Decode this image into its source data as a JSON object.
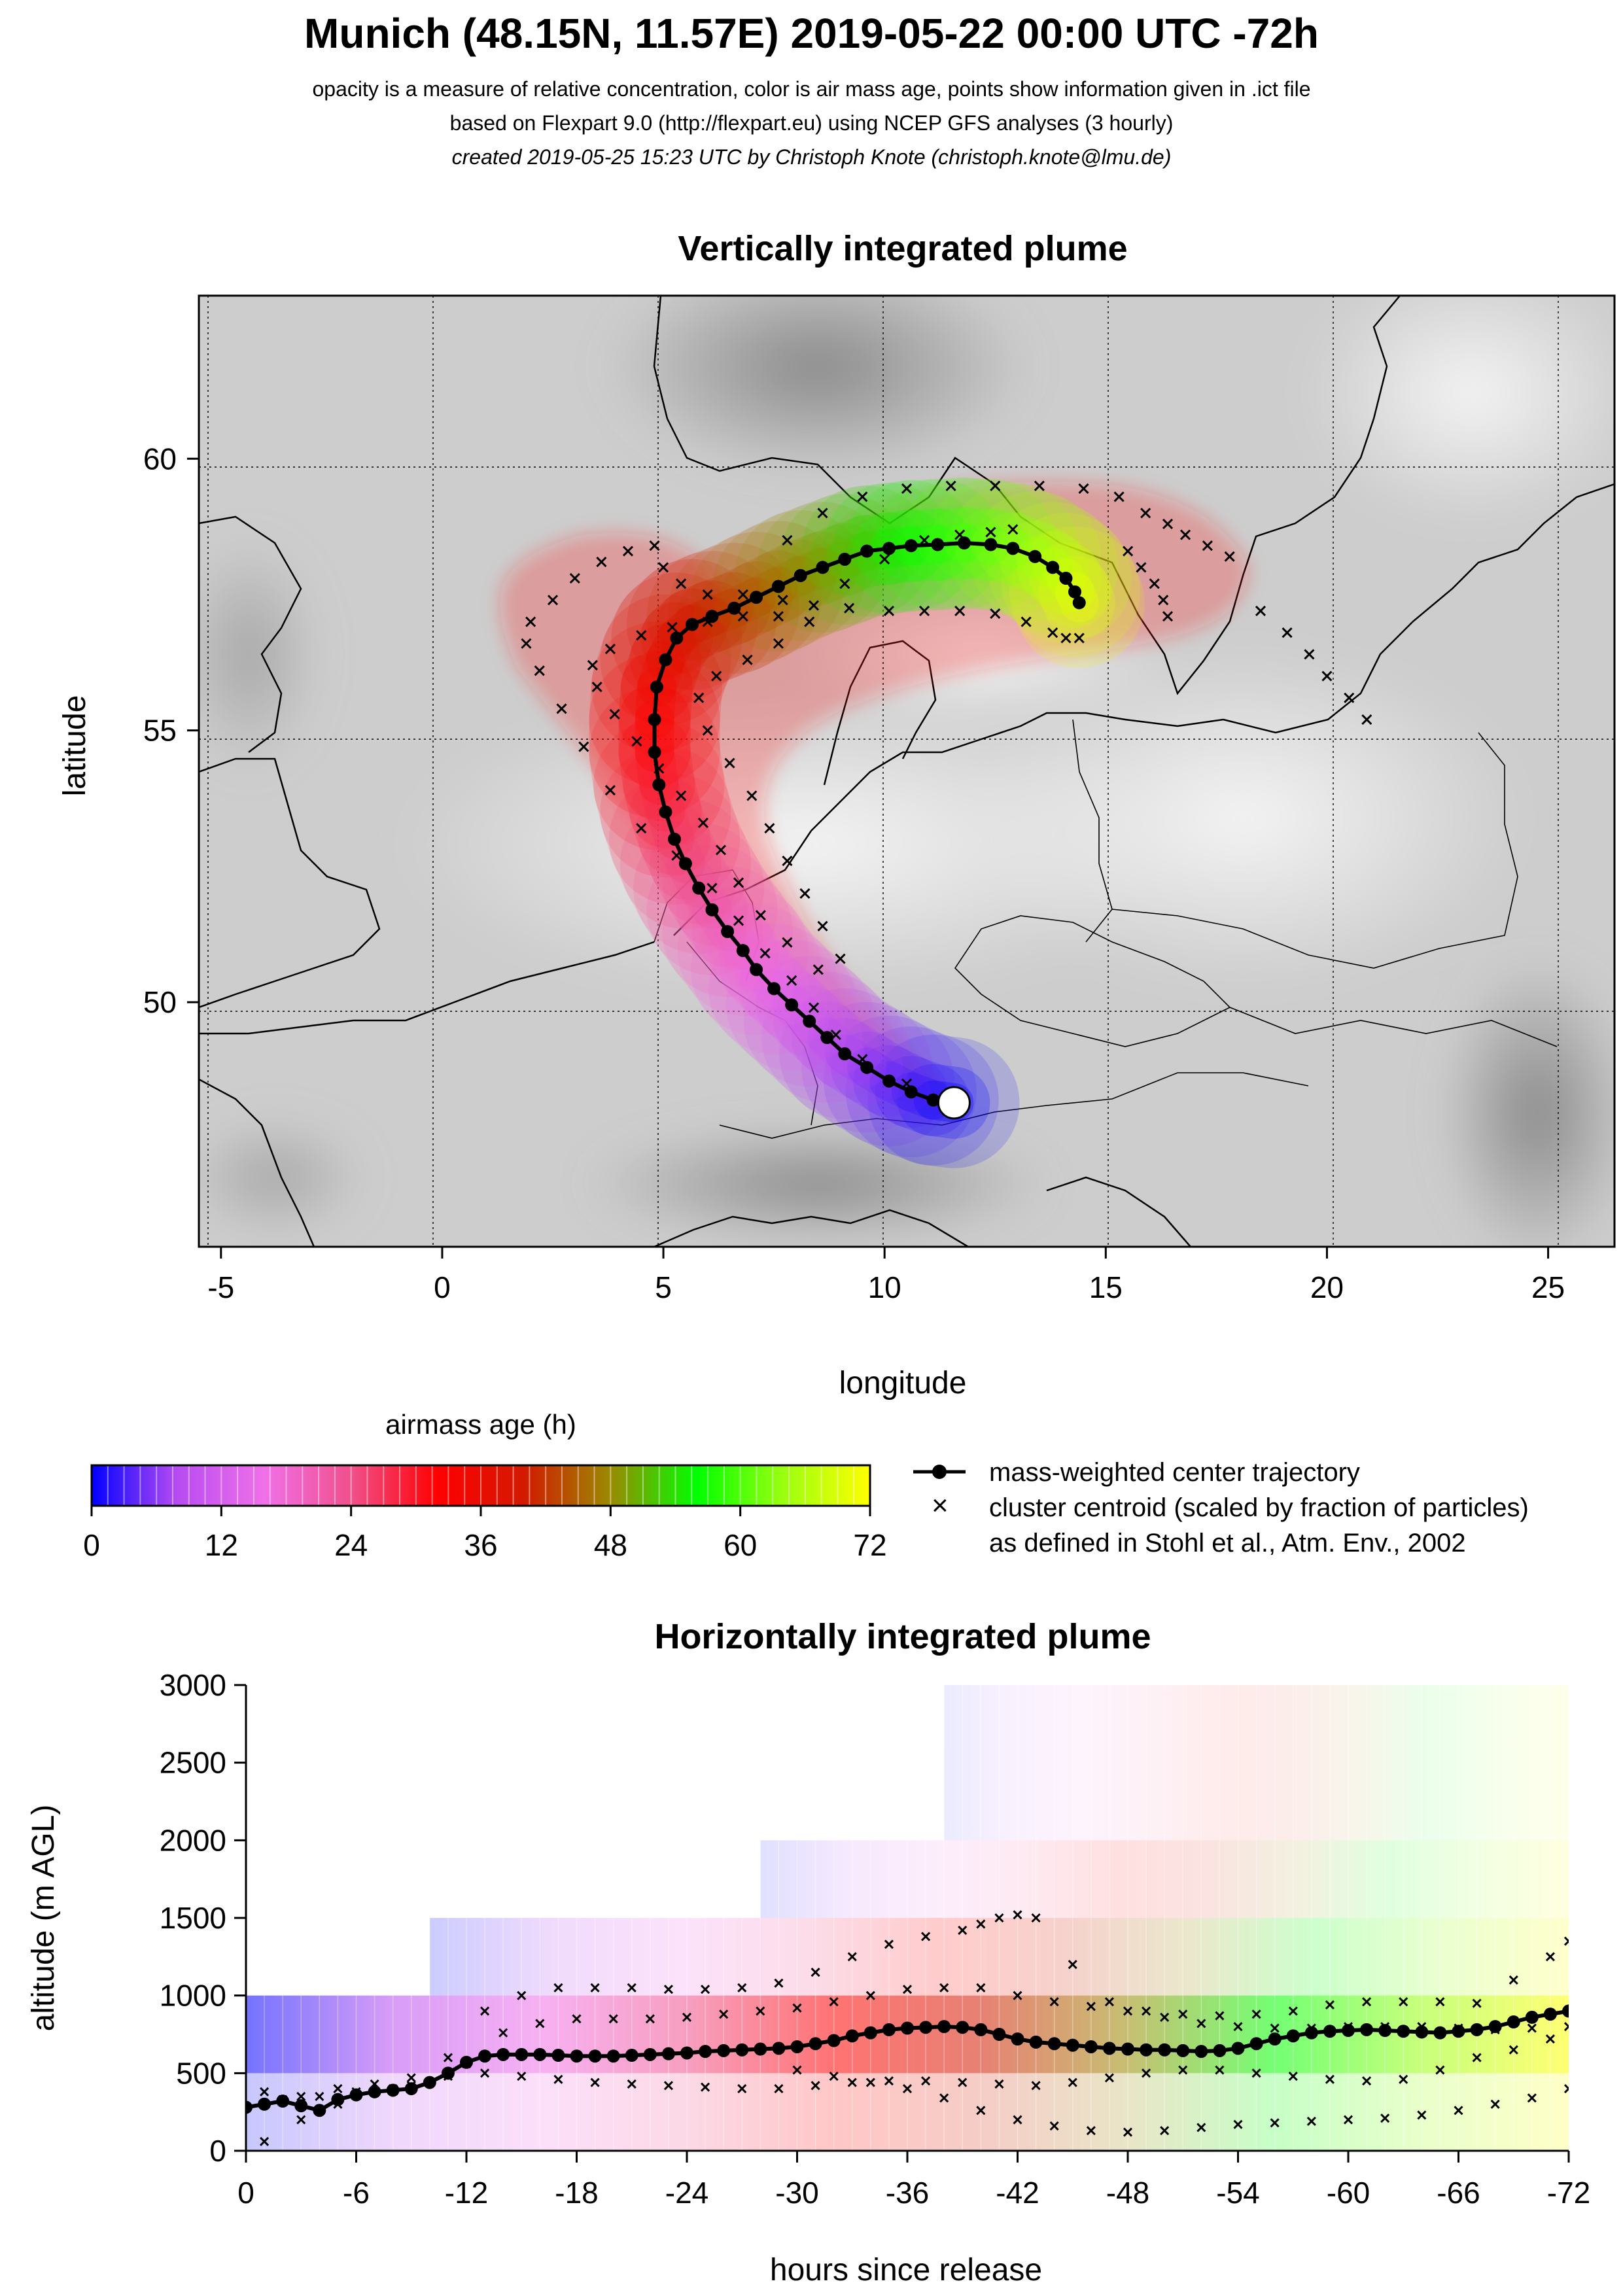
{
  "header": {
    "title": "Munich (48.15N, 11.57E) 2019-05-22 00:00 UTC -72h",
    "line1": "opacity is a measure of relative concentration, color is air mass age, points show information given in .ict file",
    "line2": "based on Flexpart 9.0 (http://flexpart.eu) using NCEP GFS analyses (3 hourly)",
    "line3": "created 2019-05-25 15:23 UTC by Christoph Knote (christoph.knote@lmu.de)"
  },
  "colors": {
    "age_stops": [
      "#0000ff",
      "#b84cf2",
      "#f070e8",
      "#f0508c",
      "#ff0000",
      "#d21a00",
      "#9a8a00",
      "#00ff00",
      "#9bff10",
      "#ffff00"
    ],
    "map_background": "#c8c8c8",
    "land_light": "#dedede"
  },
  "legend": {
    "colorbar_title": "airmass age (h)",
    "colorbar_ticks": [
      "0",
      "12",
      "24",
      "36",
      "48",
      "60",
      "72"
    ],
    "center_label": "mass-weighted center trajectory",
    "cluster_label1": "cluster centroid (scaled by fraction of particles)",
    "cluster_label2": "as defined in Stohl et al., Atm. Env., 2002"
  },
  "chart_data": [
    {
      "type": "scatter",
      "title": "Vertically integrated plume",
      "xlabel": "longitude",
      "ylabel": "latitude",
      "xlim": [
        -5.5,
        26.5
      ],
      "ylim": [
        45.5,
        63
      ],
      "xticks": [
        -5,
        0,
        5,
        10,
        15,
        20,
        25
      ],
      "yticks": [
        50,
        55,
        60
      ],
      "grid": true,
      "release_point": {
        "lon": 11.57,
        "lat": 48.15
      },
      "series": [
        {
          "name": "mass-weighted center trajectory",
          "points": [
            [
              11.57,
              48.15
            ],
            [
              11.1,
              48.2
            ],
            [
              10.6,
              48.35
            ],
            [
              10.1,
              48.55
            ],
            [
              9.6,
              48.8
            ],
            [
              9.1,
              49.05
            ],
            [
              8.7,
              49.35
            ],
            [
              8.3,
              49.65
            ],
            [
              7.9,
              49.95
            ],
            [
              7.5,
              50.25
            ],
            [
              7.1,
              50.6
            ],
            [
              6.8,
              50.95
            ],
            [
              6.45,
              51.3
            ],
            [
              6.1,
              51.7
            ],
            [
              5.8,
              52.1
            ],
            [
              5.5,
              52.55
            ],
            [
              5.25,
              53
            ],
            [
              5.05,
              53.5
            ],
            [
              4.9,
              54
            ],
            [
              4.8,
              54.6
            ],
            [
              4.8,
              55.2
            ],
            [
              4.85,
              55.8
            ],
            [
              5.05,
              56.3
            ],
            [
              5.3,
              56.7
            ],
            [
              5.65,
              56.95
            ],
            [
              6.1,
              57.1
            ],
            [
              6.6,
              57.25
            ],
            [
              7.1,
              57.45
            ],
            [
              7.6,
              57.65
            ],
            [
              8.1,
              57.85
            ],
            [
              8.6,
              58.0
            ],
            [
              9.1,
              58.15
            ],
            [
              9.6,
              58.3
            ],
            [
              10.1,
              58.35
            ],
            [
              10.6,
              58.4
            ],
            [
              11.2,
              58.42
            ],
            [
              11.8,
              58.45
            ],
            [
              12.4,
              58.42
            ],
            [
              12.9,
              58.35
            ],
            [
              13.4,
              58.2
            ],
            [
              13.8,
              58.0
            ],
            [
              14.1,
              57.8
            ],
            [
              14.3,
              57.55
            ],
            [
              14.4,
              57.35
            ]
          ]
        },
        {
          "name": "cluster centroid",
          "points": [
            [
              11.5,
              48.2
            ],
            [
              10.5,
              48.5
            ],
            [
              9.5,
              48.95
            ],
            [
              8.9,
              49.4
            ],
            [
              8.4,
              49.9
            ],
            [
              7.9,
              50.4
            ],
            [
              7.3,
              50.9
            ],
            [
              6.7,
              51.5
            ],
            [
              6.1,
              52.1
            ],
            [
              5.3,
              52.7
            ],
            [
              4.5,
              53.2
            ],
            [
              3.8,
              53.9
            ],
            [
              3.2,
              54.7
            ],
            [
              2.7,
              55.4
            ],
            [
              2.2,
              56.1
            ],
            [
              1.9,
              56.6
            ],
            [
              2.0,
              57.0
            ],
            [
              2.5,
              57.4
            ],
            [
              3.0,
              57.8
            ],
            [
              3.6,
              58.1
            ],
            [
              4.2,
              58.3
            ],
            [
              4.8,
              58.4
            ],
            [
              5.0,
              58.0
            ],
            [
              5.4,
              57.7
            ],
            [
              6.0,
              57.5
            ],
            [
              6.8,
              57.5
            ],
            [
              7.7,
              57.4
            ],
            [
              8.4,
              57.3
            ],
            [
              9.2,
              57.25
            ],
            [
              10.1,
              57.2
            ],
            [
              10.9,
              57.2
            ],
            [
              11.7,
              57.2
            ],
            [
              12.5,
              57.15
            ],
            [
              13.2,
              57.0
            ],
            [
              13.8,
              56.8
            ],
            [
              14.1,
              56.7
            ],
            [
              14.4,
              56.7
            ],
            [
              8.5,
              50.6
            ],
            [
              7.8,
              51.1
            ],
            [
              7.2,
              51.6
            ],
            [
              6.7,
              52.2
            ],
            [
              6.3,
              52.8
            ],
            [
              5.9,
              53.3
            ],
            [
              5.4,
              53.8
            ],
            [
              4.9,
              54.3
            ],
            [
              4.4,
              54.8
            ],
            [
              3.9,
              55.3
            ],
            [
              3.5,
              55.8
            ],
            [
              3.4,
              56.2
            ],
            [
              3.8,
              56.5
            ],
            [
              4.5,
              56.75
            ],
            [
              5.2,
              56.9
            ],
            [
              6.0,
              57.0
            ],
            [
              6.8,
              57.1
            ],
            [
              7.6,
              57.1
            ],
            [
              9.0,
              50.8
            ],
            [
              8.6,
              51.4
            ],
            [
              8.2,
              52.0
            ],
            [
              7.8,
              52.6
            ],
            [
              7.4,
              53.2
            ],
            [
              7.0,
              53.8
            ],
            [
              6.5,
              54.4
            ],
            [
              6.0,
              55.0
            ],
            [
              5.8,
              55.6
            ],
            [
              6.2,
              56.0
            ],
            [
              6.9,
              56.3
            ],
            [
              7.6,
              56.6
            ],
            [
              8.3,
              57.0
            ],
            [
              9.1,
              57.7
            ],
            [
              10.0,
              58.15
            ],
            [
              10.9,
              58.5
            ],
            [
              11.7,
              58.6
            ],
            [
              12.4,
              58.65
            ],
            [
              12.9,
              58.7
            ],
            [
              7.8,
              58.5
            ],
            [
              8.6,
              59.0
            ],
            [
              9.5,
              59.3
            ],
            [
              10.5,
              59.45
            ],
            [
              11.5,
              59.5
            ],
            [
              12.5,
              59.5
            ],
            [
              13.5,
              59.5
            ],
            [
              14.5,
              59.45
            ],
            [
              15.3,
              59.3
            ],
            [
              15.9,
              59.0
            ],
            [
              16.4,
              58.8
            ],
            [
              16.8,
              58.6
            ],
            [
              17.3,
              58.4
            ],
            [
              17.8,
              58.2
            ],
            [
              15.5,
              58.3
            ],
            [
              15.8,
              58.0
            ],
            [
              16.1,
              57.7
            ],
            [
              16.3,
              57.4
            ],
            [
              16.4,
              57.1
            ],
            [
              18.5,
              57.2
            ],
            [
              19.1,
              56.8
            ],
            [
              19.6,
              56.4
            ],
            [
              20.0,
              56.0
            ],
            [
              20.5,
              55.6
            ],
            [
              20.9,
              55.2
            ]
          ]
        }
      ]
    },
    {
      "type": "scatter",
      "title": "Horizontally integrated plume",
      "xlabel": "hours since release",
      "ylabel": "altitude (m AGL)",
      "xlim": [
        0,
        -72
      ],
      "ylim": [
        0,
        3000
      ],
      "xticks": [
        "0",
        "-6",
        "-12",
        "-18",
        "-24",
        "-30",
        "-36",
        "-42",
        "-48",
        "-54",
        "-60",
        "-66",
        "-72"
      ],
      "yticks": [
        "0",
        "500",
        "1000",
        "1500",
        "2000",
        "2500",
        "3000"
      ],
      "series": [
        {
          "name": "mass-weighted center trajectory",
          "x": [
            0,
            -1,
            -2,
            -3,
            -4,
            -5,
            -6,
            -7,
            -8,
            -9,
            -10,
            -11,
            -12,
            -13,
            -14,
            -15,
            -16,
            -17,
            -18,
            -19,
            -20,
            -21,
            -22,
            -23,
            -24,
            -25,
            -26,
            -27,
            -28,
            -29,
            -30,
            -31,
            -32,
            -33,
            -34,
            -35,
            -36,
            -37,
            -38,
            -39,
            -40,
            -41,
            -42,
            -43,
            -44,
            -45,
            -46,
            -47,
            -48,
            -49,
            -50,
            -51,
            -52,
            -53,
            -54,
            -55,
            -56,
            -57,
            -58,
            -59,
            -60,
            -61,
            -62,
            -63,
            -64,
            -65,
            -66,
            -67,
            -68,
            -69,
            -70,
            -71,
            -72
          ],
          "y": [
            280,
            300,
            320,
            290,
            260,
            330,
            360,
            380,
            390,
            400,
            440,
            500,
            570,
            610,
            620,
            620,
            620,
            615,
            610,
            610,
            610,
            615,
            620,
            625,
            630,
            640,
            645,
            650,
            655,
            660,
            670,
            690,
            710,
            740,
            760,
            780,
            790,
            795,
            800,
            795,
            780,
            750,
            720,
            700,
            690,
            680,
            670,
            660,
            655,
            650,
            650,
            645,
            640,
            645,
            660,
            690,
            720,
            740,
            760,
            770,
            775,
            780,
            775,
            770,
            765,
            760,
            770,
            780,
            800,
            830,
            860,
            880,
            900
          ]
        },
        {
          "name": "cluster centroid (upper branch)",
          "x": [
            -1,
            -3,
            -5,
            -7,
            -9,
            -11,
            -13,
            -15,
            -17,
            -19,
            -21,
            -23,
            -25,
            -27,
            -29,
            -31,
            -33,
            -35,
            -37,
            -39,
            -40,
            -41,
            -42,
            -43,
            -45,
            -47,
            -49,
            -51,
            -53,
            -55,
            -57,
            -59,
            -61,
            -63,
            -65,
            -67,
            -69,
            -71,
            -72
          ],
          "y": [
            380,
            350,
            400,
            430,
            470,
            600,
            900,
            1000,
            1050,
            1050,
            1050,
            1040,
            1040,
            1050,
            1080,
            1150,
            1250,
            1330,
            1380,
            1420,
            1460,
            1500,
            1520,
            1500,
            1200,
            960,
            900,
            880,
            870,
            880,
            900,
            940,
            960,
            960,
            960,
            950,
            1100,
            1250,
            1350
          ]
        },
        {
          "name": "cluster centroid (middle branch)",
          "x": [
            -2,
            -4,
            -6,
            -8,
            -10,
            -12,
            -14,
            -16,
            -18,
            -20,
            -22,
            -24,
            -26,
            -28,
            -30,
            -32,
            -34,
            -36,
            -38,
            -40,
            -42,
            -44,
            -46,
            -48,
            -50,
            -52,
            -54,
            -56,
            -58,
            -60,
            -62,
            -64,
            -66,
            -68,
            -70,
            -72
          ],
          "y": [
            330,
            350,
            380,
            400,
            440,
            560,
            760,
            820,
            850,
            850,
            850,
            860,
            880,
            900,
            920,
            960,
            1000,
            1040,
            1050,
            1050,
            1000,
            960,
            930,
            900,
            860,
            820,
            800,
            790,
            790,
            800,
            800,
            800,
            790,
            780,
            790,
            800
          ]
        },
        {
          "name": "cluster centroid (lower branch)",
          "x": [
            -1,
            -3,
            -5,
            -7,
            -9,
            -11,
            -13,
            -15,
            -17,
            -19,
            -21,
            -23,
            -25,
            -27,
            -29,
            -31,
            -33,
            -35,
            -37,
            -39,
            -41,
            -43,
            -45,
            -47,
            -49,
            -51,
            -53,
            -55,
            -57,
            -59,
            -61,
            -63,
            -65,
            -67,
            -69,
            -71
          ],
          "y": [
            60,
            200,
            300,
            380,
            420,
            480,
            500,
            480,
            460,
            440,
            430,
            420,
            410,
            400,
            400,
            420,
            440,
            450,
            450,
            440,
            430,
            420,
            440,
            470,
            500,
            520,
            520,
            500,
            480,
            460,
            450,
            460,
            520,
            600,
            650,
            720
          ]
        },
        {
          "name": "cluster centroid (bottom branch)",
          "x": [
            -30,
            -32,
            -34,
            -36,
            -38,
            -40,
            -42,
            -44,
            -46,
            -48,
            -50,
            -52,
            -54,
            -56,
            -58,
            -60,
            -62,
            -64,
            -66,
            -68,
            -70,
            -72
          ],
          "y": [
            520,
            480,
            440,
            400,
            340,
            260,
            200,
            160,
            130,
            120,
            130,
            150,
            170,
            180,
            190,
            200,
            210,
            230,
            260,
            300,
            340,
            400
          ]
        }
      ]
    }
  ]
}
